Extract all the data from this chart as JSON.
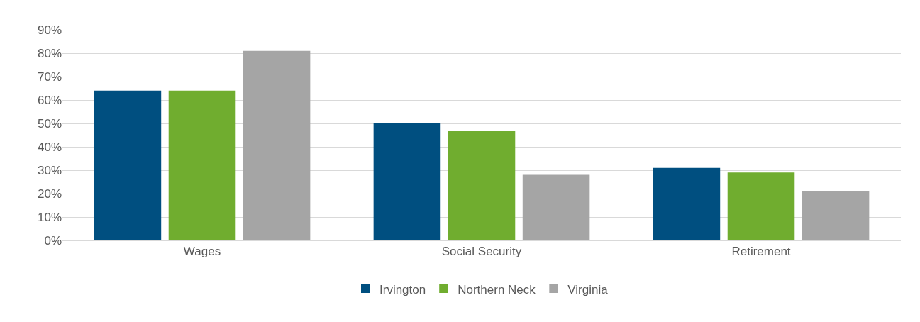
{
  "chart_data": {
    "type": "bar",
    "categories": [
      "Wages",
      "Social Security",
      "Retirement"
    ],
    "series": [
      {
        "name": "Irvington",
        "color": "#004f80",
        "values": [
          64,
          50,
          31
        ]
      },
      {
        "name": "Northern Neck",
        "color": "#70ad2f",
        "values": [
          64,
          47,
          29
        ]
      },
      {
        "name": "Virginia",
        "color": "#a5a5a5",
        "values": [
          81,
          28,
          21
        ]
      }
    ],
    "ylim": [
      0,
      90
    ],
    "yticks": [
      {
        "value": 0,
        "label": "0%"
      },
      {
        "value": 10,
        "label": "10%"
      },
      {
        "value": 20,
        "label": "20%"
      },
      {
        "value": 30,
        "label": "30%"
      },
      {
        "value": 40,
        "label": "40%"
      },
      {
        "value": 50,
        "label": "50%"
      },
      {
        "value": 60,
        "label": "60%"
      },
      {
        "value": 70,
        "label": "70%"
      },
      {
        "value": 80,
        "label": "80%"
      },
      {
        "value": 90,
        "label": "90%"
      }
    ],
    "grid": "y",
    "legend": "bottom"
  }
}
